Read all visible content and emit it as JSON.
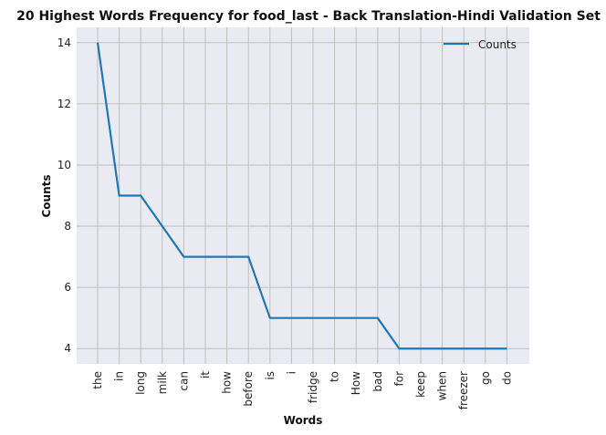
{
  "chart_data": {
    "type": "line",
    "title": "20 Highest Words Frequency for food_last - Back Translation-Hindi Validation Set",
    "xlabel": "Words",
    "ylabel": "Counts",
    "categories": [
      "the",
      "in",
      "long",
      "milk",
      "can",
      "it",
      "how",
      "before",
      "is",
      "i",
      "fridge",
      "to",
      "How",
      "bad",
      "for",
      "keep",
      "when",
      "freezer",
      "go",
      "do"
    ],
    "series": [
      {
        "name": "Counts",
        "values": [
          14,
          9,
          9,
          8,
          7,
          7,
          7,
          7,
          5,
          5,
          5,
          5,
          5,
          5,
          4,
          4,
          4,
          4,
          4,
          4
        ]
      }
    ],
    "yticks": [
      4,
      6,
      8,
      10,
      12,
      14
    ],
    "ylim": [
      3.5,
      14.5
    ],
    "grid": true,
    "legend_position": "top-right",
    "colors": {
      "line": "#1f77b4",
      "plot_background": "#eaeaf2",
      "grid": "#c0c0c0"
    }
  }
}
